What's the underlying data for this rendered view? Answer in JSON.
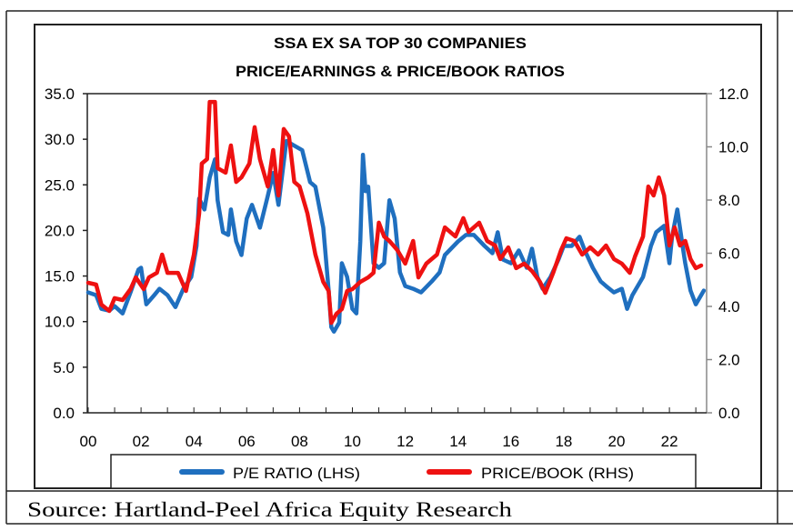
{
  "source": "Source:  Hartland-Peel Africa Equity Research",
  "chart_data": {
    "type": "line",
    "title": [
      "SSA EX SA TOP 30 COMPANIES",
      "PRICE/EARNINGS & PRICE/BOOK RATIOS"
    ],
    "x_tick_labels": [
      "00",
      "02",
      "04",
      "06",
      "08",
      "10",
      "12",
      "14",
      "16",
      "18",
      "20",
      "22"
    ],
    "x_ticks": [
      2000,
      2002,
      2004,
      2006,
      2008,
      2010,
      2012,
      2014,
      2016,
      2018,
      2020,
      2022
    ],
    "xlim": [
      2000,
      2023.4
    ],
    "left_axis": {
      "ylim": [
        0,
        35
      ],
      "tick_labels": [
        "0.0",
        "5.0",
        "10.0",
        "15.0",
        "20.0",
        "25.0",
        "30.0",
        "35.0"
      ],
      "ticks": [
        0,
        5,
        10,
        15,
        20,
        25,
        30,
        35
      ]
    },
    "right_axis": {
      "ylim": [
        0,
        12
      ],
      "tick_labels": [
        "0.0",
        "2.0",
        "4.0",
        "6.0",
        "8.0",
        "10.0",
        "12.0"
      ],
      "ticks": [
        0,
        2,
        4,
        6,
        8,
        10,
        12
      ]
    },
    "grid": false,
    "legend": {
      "placement": "bottom"
    },
    "series": [
      {
        "name": "P/E RATIO (LHS)",
        "axis": "left",
        "color": "#1f6fbf",
        "x": [
          2000.0,
          2000.3,
          2000.5,
          2000.8,
          2001.0,
          2001.3,
          2001.6,
          2001.9,
          2002.0,
          2002.2,
          2002.5,
          2002.7,
          2003.0,
          2003.3,
          2003.6,
          2003.9,
          2004.1,
          2004.2,
          2004.4,
          2004.6,
          2004.8,
          2004.9,
          2005.1,
          2005.3,
          2005.4,
          2005.6,
          2005.8,
          2006.0,
          2006.2,
          2006.5,
          2006.8,
          2007.0,
          2007.2,
          2007.5,
          2007.8,
          2008.1,
          2008.4,
          2008.6,
          2008.9,
          2009.1,
          2009.2,
          2009.3,
          2009.5,
          2009.6,
          2009.8,
          2010.0,
          2010.15,
          2010.3,
          2010.4,
          2010.5,
          2010.6,
          2010.8,
          2011.0,
          2011.2,
          2011.4,
          2011.6,
          2011.8,
          2012.0,
          2012.3,
          2012.6,
          2013.0,
          2013.3,
          2013.5,
          2014.0,
          2014.3,
          2014.6,
          2015.0,
          2015.3,
          2015.5,
          2015.7,
          2016.0,
          2016.3,
          2016.6,
          2016.8,
          2017.0,
          2017.2,
          2017.5,
          2017.8,
          2018.0,
          2018.3,
          2018.6,
          2018.8,
          2019.1,
          2019.4,
          2019.6,
          2019.9,
          2020.2,
          2020.4,
          2020.6,
          2021.0,
          2021.3,
          2021.5,
          2021.8,
          2022.0,
          2022.1,
          2022.3,
          2022.5,
          2022.6,
          2022.8,
          2023.0,
          2023.3
        ],
        "values": [
          13.2,
          12.9,
          11.4,
          11.2,
          11.7,
          10.9,
          13.2,
          15.7,
          15.9,
          11.9,
          12.9,
          13.6,
          12.9,
          11.6,
          13.6,
          14.9,
          18.3,
          23.5,
          22.3,
          25.8,
          27.8,
          23.3,
          19.8,
          19.5,
          22.3,
          18.8,
          17.3,
          21.3,
          22.8,
          20.3,
          23.8,
          26.3,
          22.8,
          29.8,
          29.3,
          28.8,
          25.3,
          24.8,
          20.3,
          13.4,
          9.4,
          8.9,
          9.9,
          16.4,
          14.9,
          11.4,
          10.9,
          18.8,
          28.3,
          24.3,
          24.8,
          16.4,
          15.9,
          16.4,
          23.3,
          21.3,
          15.4,
          13.9,
          13.6,
          13.2,
          14.4,
          15.4,
          17.3,
          18.8,
          19.5,
          19.5,
          18.3,
          17.5,
          19.8,
          16.8,
          16.4,
          17.8,
          15.9,
          18.0,
          14.9,
          13.6,
          14.9,
          16.8,
          18.3,
          18.3,
          19.3,
          17.8,
          15.9,
          14.4,
          13.9,
          13.2,
          13.6,
          11.4,
          12.9,
          14.9,
          18.3,
          19.8,
          20.5,
          16.4,
          19.3,
          22.3,
          18.3,
          16.4,
          13.4,
          11.9,
          13.4
        ]
      },
      {
        "name": "PRICE/BOOK (RHS)",
        "axis": "right",
        "color": "#ee1111",
        "x": [
          2000.0,
          2000.3,
          2000.5,
          2000.8,
          2001.0,
          2001.3,
          2001.6,
          2001.8,
          2002.1,
          2002.3,
          2002.6,
          2002.8,
          2003.0,
          2003.4,
          2003.7,
          2004.0,
          2004.2,
          2004.3,
          2004.5,
          2004.6,
          2004.8,
          2004.9,
          2005.2,
          2005.4,
          2005.6,
          2005.8,
          2006.1,
          2006.3,
          2006.5,
          2006.8,
          2007.0,
          2007.2,
          2007.4,
          2007.6,
          2007.8,
          2008.0,
          2008.3,
          2008.6,
          2008.9,
          2009.1,
          2009.2,
          2009.4,
          2009.6,
          2009.8,
          2010.0,
          2010.3,
          2010.6,
          2010.8,
          2011.0,
          2011.2,
          2011.4,
          2011.7,
          2012.0,
          2012.3,
          2012.5,
          2012.8,
          2013.2,
          2013.5,
          2013.9,
          2014.2,
          2014.4,
          2014.8,
          2015.1,
          2015.4,
          2015.6,
          2015.9,
          2016.2,
          2016.5,
          2016.8,
          2017.1,
          2017.3,
          2017.6,
          2017.9,
          2018.1,
          2018.4,
          2018.7,
          2019.0,
          2019.3,
          2019.6,
          2019.9,
          2020.2,
          2020.5,
          2020.7,
          2021.0,
          2021.2,
          2021.4,
          2021.6,
          2021.8,
          2022.0,
          2022.2,
          2022.4,
          2022.6,
          2022.8,
          2023.0,
          2023.2
        ],
        "values": [
          4.89,
          4.82,
          4.07,
          3.83,
          4.31,
          4.24,
          4.65,
          5.09,
          4.65,
          5.09,
          5.26,
          5.95,
          5.26,
          5.26,
          4.58,
          5.95,
          7.49,
          9.37,
          9.54,
          11.69,
          11.69,
          9.2,
          9.03,
          10.05,
          8.68,
          8.85,
          9.37,
          10.74,
          9.54,
          8.51,
          9.88,
          8.17,
          10.67,
          10.39,
          8.68,
          8.51,
          7.49,
          5.95,
          4.92,
          4.58,
          3.38,
          3.73,
          3.9,
          4.58,
          4.65,
          4.92,
          5.09,
          5.26,
          7.15,
          6.63,
          6.46,
          6.12,
          5.61,
          6.46,
          5.09,
          5.61,
          5.95,
          6.97,
          6.63,
          7.32,
          6.8,
          7.15,
          6.46,
          6.29,
          5.78,
          6.22,
          5.44,
          5.61,
          5.33,
          4.92,
          4.51,
          5.26,
          6.12,
          6.56,
          6.46,
          5.95,
          6.22,
          5.95,
          6.29,
          5.78,
          5.61,
          5.26,
          5.88,
          6.63,
          8.51,
          8.17,
          8.85,
          8.17,
          6.29,
          6.97,
          6.29,
          6.46,
          5.78,
          5.44,
          5.54
        ]
      }
    ]
  }
}
